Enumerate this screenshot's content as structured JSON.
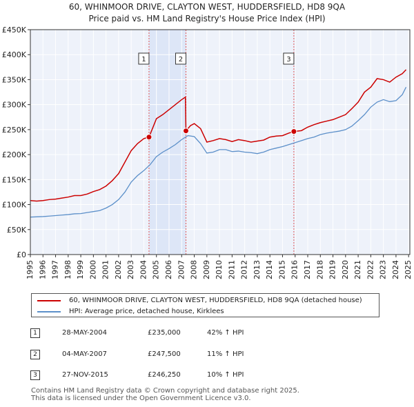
{
  "chart_data": {
    "type": "line",
    "title": "60, WHINMOOR DRIVE, CLAYTON WEST, HUDDERSFIELD, HD8 9QA",
    "subtitle": "Price paid vs. HM Land Registry's House Price Index (HPI)",
    "xlim": [
      1995,
      2025.1
    ],
    "ylim": [
      0,
      450000
    ],
    "x_ticks": [
      "1995",
      "1996",
      "1997",
      "1998",
      "1999",
      "2000",
      "2001",
      "2002",
      "2003",
      "2004",
      "2005",
      "2006",
      "2007",
      "2008",
      "2009",
      "2010",
      "2011",
      "2012",
      "2013",
      "2014",
      "2015",
      "2016",
      "2017",
      "2018",
      "2019",
      "2020",
      "2021",
      "2022",
      "2023",
      "2024",
      "2025"
    ],
    "y_ticks": [
      {
        "value": 0,
        "label": "£0"
      },
      {
        "value": 50000,
        "label": "£50K"
      },
      {
        "value": 100000,
        "label": "£100K"
      },
      {
        "value": 150000,
        "label": "£150K"
      },
      {
        "value": 200000,
        "label": "£200K"
      },
      {
        "value": 250000,
        "label": "£250K"
      },
      {
        "value": 300000,
        "label": "£300K"
      },
      {
        "value": 350000,
        "label": "£350K"
      },
      {
        "value": 400000,
        "label": "£400K"
      },
      {
        "value": 450000,
        "label": "£450K"
      }
    ],
    "grid": true,
    "shaded_ranges": [
      [
        2004.41,
        2007.34
      ],
      [
        2015.9,
        2015.95
      ]
    ],
    "series": [
      {
        "name": "60, WHINMOOR DRIVE, CLAYTON WEST, HUDDERSFIELD, HD8 9QA (detached house)",
        "color": "#cc0000",
        "x": [
          1995.0,
          1995.5,
          1996.0,
          1996.5,
          1997.0,
          1997.5,
          1998.0,
          1998.5,
          1999.0,
          1999.5,
          2000.0,
          2000.5,
          2001.0,
          2001.5,
          2002.0,
          2002.5,
          2003.0,
          2003.5,
          2004.0,
          2004.41,
          2004.7,
          2005.0,
          2005.5,
          2006.0,
          2006.5,
          2007.0,
          2007.3,
          2007.34,
          2007.7,
          2008.0,
          2008.5,
          2009.0,
          2009.5,
          2010.0,
          2010.5,
          2011.0,
          2011.5,
          2012.0,
          2012.5,
          2013.0,
          2013.5,
          2014.0,
          2014.5,
          2015.0,
          2015.5,
          2015.9,
          2016.5,
          2017.0,
          2017.5,
          2018.0,
          2018.5,
          2019.0,
          2019.5,
          2020.0,
          2020.5,
          2021.0,
          2021.5,
          2022.0,
          2022.5,
          2023.0,
          2023.5,
          2024.0,
          2024.5,
          2024.8
        ],
        "values": [
          108000,
          107000,
          108000,
          110000,
          111000,
          113000,
          115000,
          118000,
          118000,
          121000,
          126000,
          130000,
          137000,
          148000,
          162000,
          185000,
          208000,
          222000,
          232000,
          235000,
          253000,
          272000,
          280000,
          290000,
          300000,
          310000,
          315000,
          247500,
          258000,
          262000,
          252000,
          225000,
          228000,
          232000,
          230000,
          226000,
          230000,
          228000,
          225000,
          227000,
          229000,
          235000,
          237000,
          238000,
          243000,
          246250,
          248000,
          255000,
          260000,
          264000,
          267000,
          270000,
          275000,
          280000,
          292000,
          305000,
          325000,
          335000,
          352000,
          350000,
          345000,
          355000,
          362000,
          370000
        ]
      },
      {
        "name": "HPI: Average price, detached house, Kirklees",
        "color": "#5b8fc9",
        "x": [
          1995.0,
          1995.5,
          1996.0,
          1996.5,
          1997.0,
          1997.5,
          1998.0,
          1998.5,
          1999.0,
          1999.5,
          2000.0,
          2000.5,
          2001.0,
          2001.5,
          2002.0,
          2002.5,
          2003.0,
          2003.5,
          2004.0,
          2004.5,
          2005.0,
          2005.5,
          2006.0,
          2006.5,
          2007.0,
          2007.5,
          2008.0,
          2008.5,
          2009.0,
          2009.5,
          2010.0,
          2010.5,
          2011.0,
          2011.5,
          2012.0,
          2012.5,
          2013.0,
          2013.5,
          2014.0,
          2014.5,
          2015.0,
          2015.5,
          2016.0,
          2016.5,
          2017.0,
          2017.5,
          2018.0,
          2018.5,
          2019.0,
          2019.5,
          2020.0,
          2020.5,
          2021.0,
          2021.5,
          2022.0,
          2022.5,
          2023.0,
          2023.5,
          2024.0,
          2024.5,
          2024.8
        ],
        "values": [
          75000,
          75500,
          76000,
          77000,
          78000,
          79000,
          80000,
          81500,
          82000,
          84000,
          86000,
          88000,
          93000,
          100000,
          110000,
          125000,
          145000,
          158000,
          168000,
          180000,
          196000,
          205000,
          212000,
          220000,
          230000,
          238000,
          236000,
          222000,
          203000,
          205000,
          210000,
          210000,
          206000,
          207000,
          205000,
          204000,
          202000,
          205000,
          210000,
          213000,
          216000,
          220000,
          224000,
          228000,
          232000,
          235000,
          240000,
          243000,
          245000,
          247000,
          250000,
          257000,
          268000,
          280000,
          295000,
          305000,
          310000,
          306000,
          308000,
          320000,
          335000
        ]
      }
    ],
    "annotations": [
      {
        "label": "1",
        "x": 2004.41,
        "y": 235000
      },
      {
        "label": "2",
        "x": 2007.34,
        "y": 247500
      },
      {
        "label": "3",
        "x": 2015.9,
        "y": 246250
      }
    ]
  },
  "legend": {
    "red_label": "60, WHINMOOR DRIVE, CLAYTON WEST, HUDDERSFIELD, HD8 9QA (detached house)",
    "blue_label": "HPI: Average price, detached house, Kirklees",
    "red_color": "#cc0000",
    "blue_color": "#5b8fc9"
  },
  "transactions": [
    {
      "num": "1",
      "date": "28-MAY-2004",
      "price": "£235,000",
      "hpi": "42% ↑ HPI"
    },
    {
      "num": "2",
      "date": "04-MAY-2007",
      "price": "£247,500",
      "hpi": "11% ↑ HPI"
    },
    {
      "num": "3",
      "date": "27-NOV-2015",
      "price": "£246,250",
      "hpi": "10% ↑ HPI"
    }
  ],
  "footer": {
    "line1": "Contains HM Land Registry data © Crown copyright and database right 2025.",
    "line2": "This data is licensed under the Open Government Licence v3.0."
  }
}
